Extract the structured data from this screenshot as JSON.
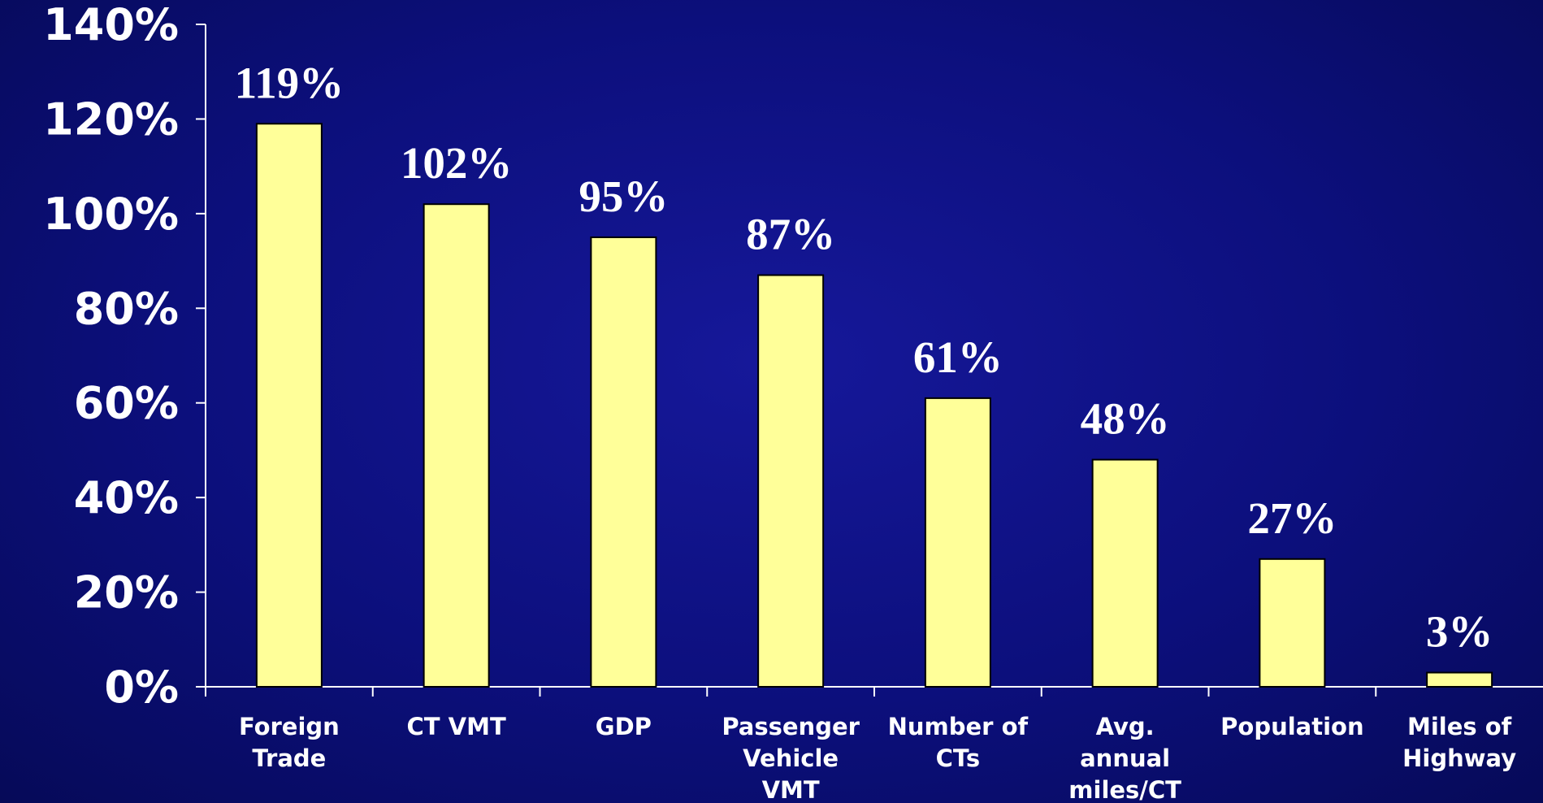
{
  "chart_data": {
    "type": "bar",
    "title": "",
    "xlabel": "",
    "ylabel": "",
    "categories": [
      [
        "Foreign",
        "Trade"
      ],
      [
        "CT VMT"
      ],
      [
        "GDP"
      ],
      [
        "Passenger",
        "Vehicle",
        "VMT"
      ],
      [
        "Number of",
        "CTs"
      ],
      [
        "Avg.",
        "annual",
        "miles/CT"
      ],
      [
        "Population"
      ],
      [
        "Miles of",
        "Highway"
      ]
    ],
    "values": [
      119,
      102,
      95,
      87,
      61,
      48,
      27,
      3
    ],
    "data_labels": [
      "119%",
      "102%",
      "95%",
      "87%",
      "61%",
      "48%",
      "27%",
      "3%"
    ],
    "ylim": [
      0,
      140
    ],
    "y_ticks": [
      0,
      20,
      40,
      60,
      80,
      100,
      120,
      140
    ],
    "y_tick_labels": [
      "0%",
      "20%",
      "40%",
      "60%",
      "80%",
      "100%",
      "120%",
      "140%"
    ],
    "grid": false,
    "legend": "none",
    "colors": {
      "background": "#0c0f7c",
      "bar_fill": "#ffff99",
      "bar_stroke": "#000000",
      "axis": "#ffffff",
      "text": "#ffffff"
    }
  }
}
